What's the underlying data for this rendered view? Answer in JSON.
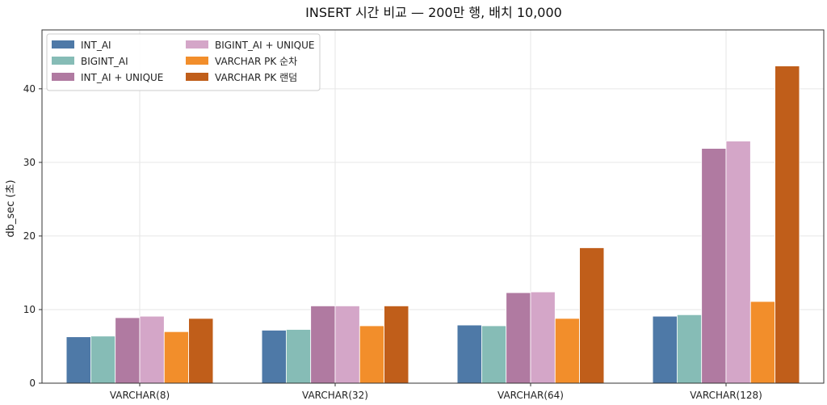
{
  "chart_data": {
    "type": "bar",
    "title": "INSERT 시간 비교 — 200만 행, 배치 10,000",
    "xlabel": "",
    "ylabel": "db_sec (초)",
    "ylim": [
      0,
      48
    ],
    "yticks": [
      0,
      10,
      20,
      30,
      40
    ],
    "grid": true,
    "legend_position": "top-left",
    "categories": [
      "VARCHAR(8)",
      "VARCHAR(32)",
      "VARCHAR(64)",
      "VARCHAR(128)"
    ],
    "series": [
      {
        "name": "INT_AI",
        "color": "#4e79a7",
        "values": [
          6.3,
          7.2,
          7.9,
          9.1
        ]
      },
      {
        "name": "BIGINT_AI",
        "color": "#86bcb6",
        "values": [
          6.4,
          7.3,
          7.8,
          9.3
        ]
      },
      {
        "name": "INT_AI + UNIQUE",
        "color": "#b07aa1",
        "values": [
          8.9,
          10.5,
          12.3,
          31.9
        ]
      },
      {
        "name": "BIGINT_AI + UNIQUE",
        "color": "#d4a6c8",
        "values": [
          9.1,
          10.5,
          12.4,
          32.9
        ]
      },
      {
        "name": "VARCHAR PK 순차",
        "color": "#f28e2b",
        "values": [
          7.0,
          7.8,
          8.8,
          11.1
        ]
      },
      {
        "name": "VARCHAR PK 랜덤",
        "color": "#c05e1a",
        "values": [
          8.8,
          10.5,
          18.4,
          43.1
        ]
      }
    ]
  }
}
